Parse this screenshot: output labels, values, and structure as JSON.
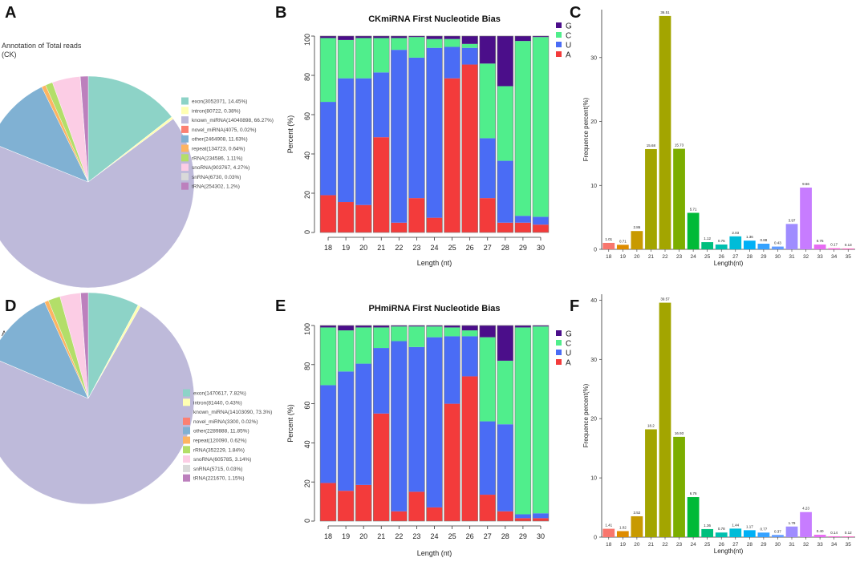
{
  "figure": {
    "panel_letters": [
      "A",
      "B",
      "C",
      "D",
      "E",
      "F"
    ]
  },
  "chart_data": [
    {
      "panel": "A",
      "type": "pie",
      "title": "Annotation of Total reads",
      "subtitle": "(CK)",
      "slices": [
        {
          "label": "exon(3052071, 14.45%)",
          "value": 14.45,
          "color": "#8dd3c7"
        },
        {
          "label": "intron(80722, 0.38%)",
          "value": 0.38,
          "color": "#ffffb3"
        },
        {
          "label": "known_miRNA(14040898, 66.27%)",
          "value": 66.27,
          "color": "#bebada"
        },
        {
          "label": "novel_miRNA(4075, 0.02%)",
          "value": 0.02,
          "color": "#fb8072"
        },
        {
          "label": "other(2464908, 11.63%)",
          "value": 11.63,
          "color": "#80b1d3"
        },
        {
          "label": "repeat(134723, 0.64%)",
          "value": 0.64,
          "color": "#fdb462"
        },
        {
          "label": "rRNA(234586, 1.11%)",
          "value": 1.11,
          "color": "#b3de69"
        },
        {
          "label": "snoRNA(903767, 4.27%)",
          "value": 4.27,
          "color": "#fccde5"
        },
        {
          "label": "snRNA(6730, 0.03%)",
          "value": 0.03,
          "color": "#d9d9d9"
        },
        {
          "label": "tRNA(254302, 1.2%)",
          "value": 1.2,
          "color": "#bc80bd"
        }
      ]
    },
    {
      "panel": "B",
      "type": "bar",
      "stacked": true,
      "title": "CKmiRNA First Nucleotide Bias",
      "xlabel": "Length (nt)",
      "ylabel": "Percent (%)",
      "ylim": [
        0,
        100
      ],
      "yticks": [
        0,
        20,
        40,
        60,
        80,
        100
      ],
      "categories": [
        "18",
        "19",
        "20",
        "21",
        "22",
        "23",
        "24",
        "25",
        "26",
        "27",
        "28",
        "29",
        "30"
      ],
      "legend": [
        "G",
        "C",
        "U",
        "A"
      ],
      "series": [
        {
          "name": "A",
          "color": "#f33b3b",
          "values": [
            19,
            15.5,
            14,
            48.5,
            5,
            17.5,
            7.5,
            78.5,
            85.5,
            17.5,
            5,
            5,
            4
          ]
        },
        {
          "name": "U",
          "color": "#4a6cf5",
          "values": [
            47.5,
            63,
            64.5,
            33,
            88,
            71.5,
            86.5,
            16,
            8.5,
            30.5,
            31.5,
            3.5,
            4
          ]
        },
        {
          "name": "C",
          "color": "#50ee8c",
          "values": [
            32.5,
            19.5,
            20.5,
            17.5,
            6,
            10.5,
            4.5,
            4,
            2,
            38,
            38,
            89,
            91.5
          ]
        },
        {
          "name": "G",
          "color": "#4b0e8a",
          "values": [
            1,
            2,
            1,
            1,
            1,
            0.5,
            1.5,
            1.5,
            4,
            14,
            25.5,
            2.5,
            0.5
          ]
        }
      ]
    },
    {
      "panel": "C",
      "type": "bar",
      "ylabel": "Frequence percent(%)",
      "xlabel": "Length(nt)",
      "ylim": [
        0,
        37.5
      ],
      "yticks": [
        0,
        10,
        20,
        30
      ],
      "categories": [
        "18",
        "19",
        "20",
        "21",
        "22",
        "23",
        "24",
        "25",
        "26",
        "27",
        "28",
        "29",
        "30",
        "31",
        "32",
        "33",
        "34",
        "35"
      ],
      "values": [
        1.01,
        0.71,
        2.86,
        15.68,
        36.51,
        15.73,
        5.71,
        1.12,
        0.75,
        2.03,
        1.36,
        0.88,
        0.43,
        3.97,
        9.66,
        0.75,
        0.17,
        0.13
      ],
      "value_labels": [
        "1.01",
        "0.71",
        "2.86",
        "15.68",
        "36.51",
        "15.73",
        "5.71",
        "1.12",
        "0.75",
        "2.03",
        "1.36",
        "0.88",
        "0.43",
        "3.97",
        "9.66",
        "0.75",
        "0.17",
        "0.13"
      ],
      "colors": [
        "#f8766d",
        "#de8c00",
        "#c89a00",
        "#a3a500",
        "#a3a500",
        "#7cae00",
        "#00ba38",
        "#00bf7d",
        "#00c0af",
        "#00bcd8",
        "#00b0f6",
        "#35a2ff",
        "#619cff",
        "#9f8cff",
        "#c77cff",
        "#e76bf3",
        "#fa62db",
        "#ff61c3"
      ]
    },
    {
      "panel": "D",
      "type": "pie",
      "title": "Annotation of Total reads",
      "subtitle": "(PH)",
      "slices": [
        {
          "label": "exon(1470617, 7.82%)",
          "value": 7.82,
          "color": "#8dd3c7"
        },
        {
          "label": "intron(81440, 0.43%)",
          "value": 0.43,
          "color": "#ffffb3"
        },
        {
          "label": "known_miRNA(14103090, 73.3%)",
          "value": 73.3,
          "color": "#bebada"
        },
        {
          "label": "novel_miRNA(3300, 0.02%)",
          "value": 0.02,
          "color": "#fb8072"
        },
        {
          "label": "other(2289888, 11.85%)",
          "value": 11.85,
          "color": "#80b1d3"
        },
        {
          "label": "repeat(120090, 0.62%)",
          "value": 0.62,
          "color": "#fdb462"
        },
        {
          "label": "rRNA(352229, 1.84%)",
          "value": 1.84,
          "color": "#b3de69"
        },
        {
          "label": "snoRNA(605785, 3.14%)",
          "value": 3.14,
          "color": "#fccde5"
        },
        {
          "label": "snRNA(5715, 0.03%)",
          "value": 0.03,
          "color": "#d9d9d9"
        },
        {
          "label": "tRNA(221670, 1.15%)",
          "value": 1.15,
          "color": "#bc80bd"
        }
      ]
    },
    {
      "panel": "E",
      "type": "bar",
      "stacked": true,
      "title": "PHmiRNA First Nucleotide Bias",
      "xlabel": "Length (nt)",
      "ylabel": "Percent (%)",
      "ylim": [
        0,
        100
      ],
      "yticks": [
        0,
        20,
        40,
        60,
        80,
        100
      ],
      "categories": [
        "18",
        "19",
        "20",
        "21",
        "22",
        "23",
        "24",
        "25",
        "26",
        "27",
        "28",
        "29",
        "30"
      ],
      "legend": [
        "G",
        "C",
        "U",
        "A"
      ],
      "series": [
        {
          "name": "A",
          "color": "#f33b3b",
          "values": [
            19.5,
            15.5,
            18.5,
            55,
            5,
            15,
            7,
            60,
            74,
            13.5,
            5,
            1.5,
            1.5
          ]
        },
        {
          "name": "U",
          "color": "#4a6cf5",
          "values": [
            50,
            61,
            62,
            33.5,
            87,
            74,
            87,
            34.5,
            20.5,
            37.5,
            44.5,
            2,
            2.5
          ]
        },
        {
          "name": "C",
          "color": "#50ee8c",
          "values": [
            29.5,
            21,
            18.5,
            10.5,
            7.5,
            10.5,
            5.5,
            4.5,
            3,
            43,
            32.5,
            95.5,
            95.5
          ]
        },
        {
          "name": "G",
          "color": "#4b0e8a",
          "values": [
            1,
            2.5,
            1,
            1,
            0.5,
            0.5,
            0.5,
            1,
            2.5,
            6,
            18,
            1,
            0.5
          ]
        }
      ]
    },
    {
      "panel": "F",
      "type": "bar",
      "ylabel": "Frequence percent(%)",
      "xlabel": "Length(nt)",
      "ylim": [
        0,
        41
      ],
      "yticks": [
        0,
        10,
        20,
        30,
        40
      ],
      "categories": [
        "18",
        "19",
        "20",
        "21",
        "22",
        "23",
        "24",
        "25",
        "26",
        "27",
        "28",
        "29",
        "30",
        "31",
        "32",
        "33",
        "34",
        "35"
      ],
      "values": [
        1.41,
        1.02,
        3.52,
        18.2,
        39.57,
        16.93,
        6.76,
        1.36,
        0.78,
        1.44,
        1.17,
        0.77,
        0.37,
        1.79,
        4.23,
        0.4,
        0.14,
        0.12
      ],
      "value_labels": [
        "1.41",
        "1.02",
        "3.52",
        "18.2",
        "39.57",
        "16.93",
        "6.76",
        "1.36",
        "0.78",
        "1.44",
        "1.17",
        "0.77",
        "0.37",
        "1.79",
        "4.23",
        "0.40",
        "0.14",
        "0.12"
      ],
      "colors": [
        "#f8766d",
        "#de8c00",
        "#c89a00",
        "#a3a500",
        "#a3a500",
        "#7cae00",
        "#00ba38",
        "#00bf7d",
        "#00c0af",
        "#00bcd8",
        "#00b0f6",
        "#35a2ff",
        "#619cff",
        "#9f8cff",
        "#c77cff",
        "#e76bf3",
        "#fa62db",
        "#ff61c3"
      ]
    }
  ]
}
